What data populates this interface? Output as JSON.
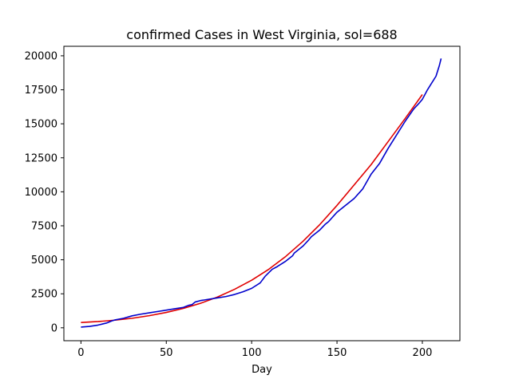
{
  "chart_data": {
    "type": "line",
    "title": "confirmed Cases in West Virginia, sol=688",
    "xlabel": "Day",
    "ylabel": "",
    "xlim": [
      -10,
      222
    ],
    "ylim": [
      -950,
      20700
    ],
    "x_ticks": [
      0,
      50,
      100,
      150,
      200
    ],
    "y_ticks": [
      0,
      2500,
      5000,
      7500,
      10000,
      12500,
      15000,
      17500,
      20000
    ],
    "grid": false,
    "series": [
      {
        "color": "#e00000",
        "x": [
          0,
          10,
          20,
          30,
          40,
          50,
          60,
          70,
          80,
          90,
          100,
          110,
          120,
          130,
          140,
          150,
          160,
          170,
          180,
          190,
          200
        ],
        "values": [
          390,
          460,
          560,
          700,
          890,
          1130,
          1430,
          1800,
          2260,
          2830,
          3500,
          4300,
          5250,
          6350,
          7600,
          9000,
          10500,
          12000,
          13700,
          15400,
          17150
        ]
      },
      {
        "color": "#0000cc",
        "x": [
          0,
          5,
          10,
          15,
          18,
          20,
          25,
          30,
          35,
          40,
          45,
          50,
          55,
          60,
          63,
          65,
          67,
          70,
          75,
          80,
          85,
          90,
          95,
          100,
          105,
          108,
          112,
          115,
          120,
          124,
          125,
          130,
          133,
          135,
          140,
          143,
          145,
          150,
          155,
          158,
          160,
          165,
          170,
          175,
          180,
          185,
          190,
          195,
          198,
          200,
          203,
          205,
          208,
          210,
          211
        ],
        "values": [
          50,
          100,
          200,
          350,
          500,
          580,
          700,
          880,
          1000,
          1100,
          1200,
          1300,
          1400,
          1500,
          1650,
          1700,
          1900,
          2000,
          2100,
          2200,
          2300,
          2450,
          2650,
          2900,
          3300,
          3800,
          4300,
          4500,
          4900,
          5300,
          5500,
          6000,
          6400,
          6700,
          7200,
          7600,
          7800,
          8500,
          9000,
          9300,
          9500,
          10200,
          11300,
          12100,
          13200,
          14200,
          15200,
          16100,
          16500,
          16800,
          17500,
          17900,
          18500,
          19300,
          19800
        ]
      }
    ]
  }
}
